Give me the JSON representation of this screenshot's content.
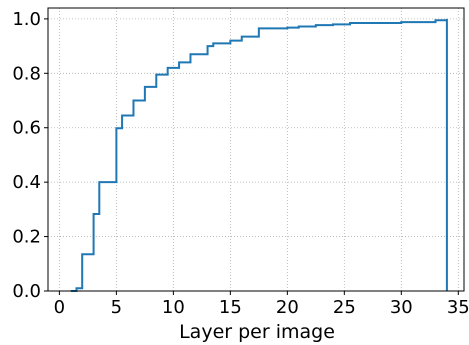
{
  "chart_data": {
    "type": "line",
    "title": "",
    "xlabel": "Layer per image",
    "ylabel": "",
    "xlim": [
      -1,
      35.5
    ],
    "ylim": [
      0,
      1.04
    ],
    "grid": true,
    "grid_style": "dotted",
    "xticks": [
      0,
      5,
      10,
      15,
      20,
      25,
      30,
      35
    ],
    "yticks": [
      0.0,
      0.2,
      0.4,
      0.6,
      0.8,
      1.0
    ],
    "xtick_labels": [
      "0",
      "5",
      "10",
      "15",
      "20",
      "25",
      "30",
      "35"
    ],
    "ytick_labels": [
      "0.0",
      "0.2",
      "0.4",
      "0.6",
      "0.8",
      "1.0"
    ],
    "series": [
      {
        "color": "#1f77b4",
        "drawstyle": "steps-post",
        "x": [
          1,
          1.5,
          2,
          3,
          3.5,
          4,
          5,
          5.5,
          6.5,
          7.5,
          8.5,
          9.5,
          10.5,
          11.5,
          13,
          13.5,
          15,
          16,
          17.5,
          20,
          21,
          22.5,
          24,
          25.5,
          30,
          33,
          34,
          34
        ],
        "y": [
          0,
          0.01,
          0.135,
          0.283,
          0.4,
          0.4,
          0.598,
          0.645,
          0.7,
          0.75,
          0.795,
          0.82,
          0.84,
          0.87,
          0.9,
          0.91,
          0.92,
          0.935,
          0.965,
          0.968,
          0.972,
          0.977,
          0.98,
          0.985,
          0.988,
          0.995,
          1.0,
          0.0
        ]
      }
    ]
  }
}
